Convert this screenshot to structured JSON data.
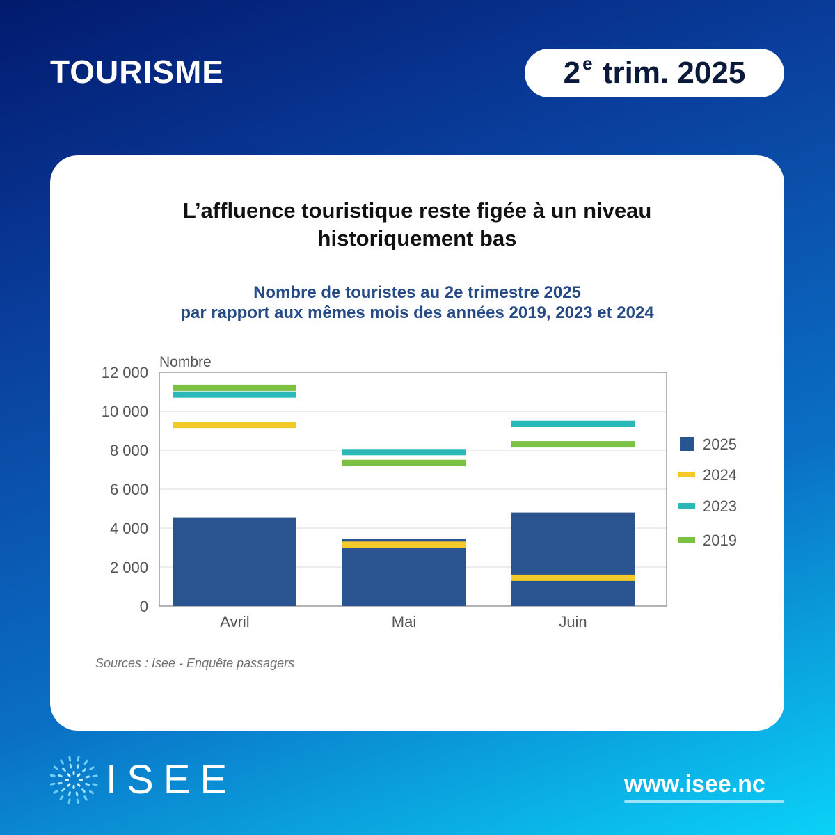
{
  "header": {
    "topic": "TOURISME",
    "period_prefix": "2",
    "period_sup": "e",
    "period_suffix": "trim. 2025"
  },
  "card": {
    "headline_line1": "L’affluence touristique reste figée à un niveau",
    "headline_line2": "historiquement bas",
    "source": "Sources : Isee - Enquête passagers"
  },
  "chart_data": {
    "type": "bar",
    "title_line1": "Nombre de touristes au 2e trimestre 2025",
    "title_line2": "par rapport aux mêmes mois des années 2019, 2023 et 2024",
    "ylabel": "Nombre",
    "ylim": [
      0,
      12000
    ],
    "yticks": [
      0,
      2000,
      4000,
      6000,
      8000,
      10000,
      12000
    ],
    "ytick_labels": [
      "0",
      "2 000",
      "4 000",
      "6 000",
      "8 000",
      "10 000",
      "12 000"
    ],
    "categories": [
      "Avril",
      "Mai",
      "Juin"
    ],
    "grid": true,
    "legend_position": "right",
    "series": [
      {
        "name": "2025",
        "kind": "bar",
        "color": "#2a548f",
        "values": [
          4550,
          3450,
          4800
        ]
      },
      {
        "name": "2024",
        "kind": "marker",
        "color": "#f4c92a",
        "values": [
          9300,
          3150,
          1450
        ]
      },
      {
        "name": "2023",
        "kind": "marker",
        "color": "#2ab8b8",
        "values": [
          10850,
          7900,
          9350
        ]
      },
      {
        "name": "2019",
        "kind": "marker",
        "color": "#7cc242",
        "values": [
          11200,
          7350,
          8300
        ]
      }
    ]
  },
  "colors": {
    "background_top": "#021a6e",
    "background_bottom": "#0ad2f7",
    "title_blue": "#264a86"
  },
  "footer": {
    "logo_text": "ISEE",
    "logo_icon": "dots-burst-icon",
    "website": "www.isee.nc"
  }
}
